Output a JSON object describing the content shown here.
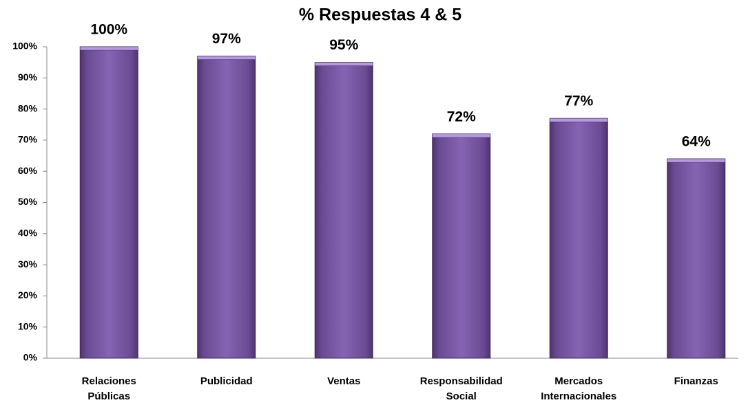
{
  "chart_data": {
    "type": "bar",
    "title": "% Respuestas 4 & 5",
    "categories": [
      "Relaciones Públicas",
      "Publicidad",
      "Ventas",
      "Responsabilidad Social",
      "Mercados Internacionales",
      "Finanzas"
    ],
    "values": [
      100,
      97,
      95,
      72,
      77,
      64
    ],
    "value_labels": [
      "100%",
      "97%",
      "95%",
      "72%",
      "77%",
      "64%"
    ],
    "color": "#7b5aa6",
    "ylim": [
      0,
      100
    ],
    "yticks": [
      {
        "value": 0,
        "label": "0%"
      },
      {
        "value": 10,
        "label": "10%"
      },
      {
        "value": 20,
        "label": "20%"
      },
      {
        "value": 30,
        "label": "30%"
      },
      {
        "value": 40,
        "label": "40%"
      },
      {
        "value": 50,
        "label": "50%"
      },
      {
        "value": 60,
        "label": "60%"
      },
      {
        "value": 70,
        "label": "70%"
      },
      {
        "value": 80,
        "label": "80%"
      },
      {
        "value": 90,
        "label": "90%"
      },
      {
        "value": 100,
        "label": "100%"
      }
    ],
    "grid": false
  }
}
